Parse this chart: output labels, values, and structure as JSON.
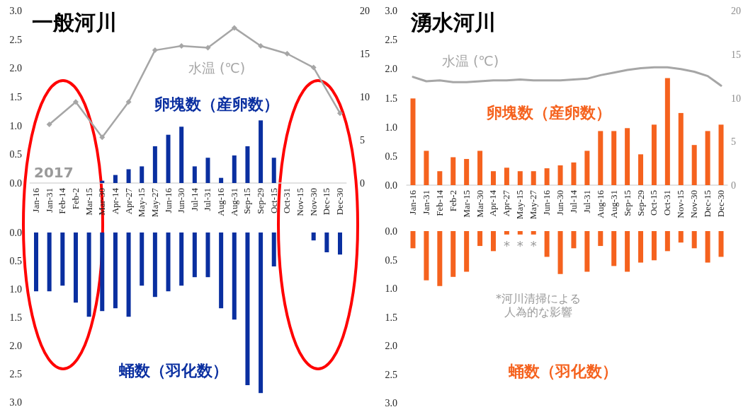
{
  "chart_data": [
    {
      "type": "bar",
      "title": "一般河川",
      "categories": [
        "Jan-16",
        "Jan-31",
        "Feb-14",
        "Feb-2",
        "Mar-15",
        "Mar-30",
        "Apr-14",
        "Apr-27",
        "May-15",
        "May-27",
        "Jun-16",
        "Jun-30",
        "Jul-14",
        "Jul-31",
        "Aug-16",
        "Aug-31",
        "Sep-15",
        "Sep-29",
        "Oct-15",
        "Oct-31",
        "Nov-15",
        "Nov-30",
        "Dec-15",
        "Dec-30"
      ],
      "series": [
        {
          "name": "卵塊数（産卵数）",
          "color": "#0a2fa0",
          "values": [
            0,
            0,
            0,
            0,
            0,
            0.04,
            0.14,
            0.24,
            0.29,
            0.64,
            0.84,
            0.98,
            0.29,
            0.44,
            0.09,
            0.48,
            0.64,
            1.09,
            0.44,
            0,
            0,
            0,
            0,
            0
          ]
        },
        {
          "name": "水温 (℃)",
          "type": "line",
          "axis": "y2",
          "color": "#a6a6a6",
          "marker": "diamond",
          "values": [
            null,
            6.8,
            null,
            9.4,
            null,
            5.3,
            null,
            9.4,
            null,
            15.4,
            null,
            15.9,
            null,
            15.7,
            null,
            18.0,
            null,
            15.9,
            null,
            15.0,
            null,
            13.4,
            null,
            8.1
          ]
        }
      ],
      "ylim": [
        0,
        3
      ],
      "yticks": [
        {
          "value": 0,
          "label": "0.0"
        },
        {
          "value": 0.5,
          "label": "0.5"
        },
        {
          "value": 1,
          "label": "1.0"
        },
        {
          "value": 1.5,
          "label": "1.5"
        },
        {
          "value": 2,
          "label": "2.0"
        },
        {
          "value": 2.5,
          "label": "2.5"
        },
        {
          "value": 3,
          "label": "3.0"
        }
      ],
      "y2lim": [
        0,
        20
      ],
      "y2ticks": [
        0,
        5,
        10,
        15,
        20
      ],
      "annotations": [
        "2017"
      ]
    },
    {
      "type": "bar",
      "categories": [
        "Jan-16",
        "Jan-31",
        "Feb-14",
        "Feb-2",
        "Mar-15",
        "Mar-30",
        "Apr-14",
        "Apr-27",
        "May-15",
        "May-27",
        "Jun-16",
        "Jun-30",
        "Jul-14",
        "Jul-31",
        "Aug-16",
        "Aug-31",
        "Sep-15",
        "Sep-29",
        "Oct-15",
        "Oct-31",
        "Nov-15",
        "Nov-30",
        "Dec-15",
        "Dec-30"
      ],
      "series": [
        {
          "name": "蛹数（羽化数）",
          "color": "#0a2fa0",
          "values": [
            1.04,
            1.04,
            0.94,
            1.24,
            1.49,
            1.39,
            1.34,
            1.49,
            0.94,
            1.14,
            1.04,
            0.94,
            0.79,
            0.79,
            1.34,
            1.54,
            2.7,
            2.84,
            0.6,
            0,
            0,
            0.14,
            0.35,
            0.39
          ]
        }
      ],
      "ylim": [
        3,
        0
      ],
      "yticks": [
        {
          "value": 0,
          "label": "0.0"
        },
        {
          "value": 0.5,
          "label": "0.5"
        },
        {
          "value": 1,
          "label": "1.0"
        },
        {
          "value": 1.5,
          "label": "1.5"
        },
        {
          "value": 2,
          "label": "2.0"
        },
        {
          "value": 2.5,
          "label": "2.5"
        },
        {
          "value": 3,
          "label": "3.0"
        }
      ],
      "tick_labels": "y"
    },
    {
      "type": "bar",
      "title": "湧水河川",
      "categories": [
        "Jan-16",
        "Jan-31",
        "Feb-14",
        "Feb-2",
        "Mar-15",
        "Mar-30",
        "Apr-14",
        "Apr-27",
        "May-15",
        "May-27",
        "Jun-16",
        "Jun-30",
        "Jul-14",
        "Jul-31",
        "Aug-16",
        "Aug-31",
        "Sep-15",
        "Sep-29",
        "Oct-15",
        "Oct-31",
        "Nov-15",
        "Nov-30",
        "Dec-15",
        "Dec-30"
      ],
      "series": [
        {
          "name": "卵塊数（産卵数）",
          "color": "#f5621e",
          "values": [
            1.49,
            0.59,
            0.24,
            0.48,
            0.45,
            0.59,
            0.24,
            0.3,
            0.24,
            0.24,
            0.29,
            0.34,
            0.39,
            0.59,
            0.93,
            0.93,
            0.98,
            0.53,
            1.04,
            1.84,
            1.24,
            0.69,
            0.93,
            1.04
          ]
        },
        {
          "name": "水温 (℃)",
          "type": "line",
          "axis": "y2",
          "color": "#a6a6a6",
          "values": [
            12.4,
            11.9,
            12.0,
            11.8,
            11.8,
            11.9,
            12.0,
            12.0,
            12.1,
            12.0,
            12.0,
            12.0,
            12.1,
            12.2,
            12.6,
            12.9,
            13.2,
            13.4,
            13.5,
            13.5,
            13.3,
            13.0,
            12.5,
            11.4
          ]
        }
      ],
      "ylim": [
        0,
        3
      ],
      "yticks": [
        {
          "value": 0,
          "label": "0.0"
        },
        {
          "value": 0.5,
          "label": "0.5"
        },
        {
          "value": 1,
          "label": "1.0"
        },
        {
          "value": 1.5,
          "label": "1.5"
        },
        {
          "value": 2,
          "label": "2.0"
        },
        {
          "value": 2.5,
          "label": "2.5"
        },
        {
          "value": 3,
          "label": "3.0"
        }
      ],
      "y2lim": [
        0,
        20
      ],
      "y2ticks": [
        0,
        5,
        10,
        15,
        20
      ]
    },
    {
      "type": "bar",
      "categories": [
        "Jan-16",
        "Jan-31",
        "Feb-14",
        "Feb-2",
        "Mar-15",
        "Mar-30",
        "Apr-14",
        "Apr-27",
        "May-15",
        "May-27",
        "Jun-16",
        "Jun-30",
        "Jul-14",
        "Jul-31",
        "Aug-16",
        "Aug-31",
        "Sep-15",
        "Sep-29",
        "Oct-15",
        "Oct-31",
        "Nov-15",
        "Nov-30",
        "Dec-15",
        "Dec-30"
      ],
      "series": [
        {
          "name": "蛹数（羽化数）",
          "color": "#f5621e",
          "values": [
            0.3,
            0.86,
            0.96,
            0.8,
            0.71,
            0.26,
            0.35,
            0.06,
            0.06,
            0.06,
            0.45,
            0.75,
            0.3,
            0.71,
            0.26,
            0.61,
            0.71,
            0.55,
            0.51,
            0.35,
            0.2,
            0.3,
            0.55,
            0.45
          ]
        }
      ],
      "ylim": [
        3,
        0
      ],
      "yticks": [
        {
          "value": 0,
          "label": "0.0"
        },
        {
          "value": 0.5,
          "label": "0.5"
        },
        {
          "value": 1,
          "label": "1.0"
        },
        {
          "value": 1.5,
          "label": "1.5"
        },
        {
          "value": 2,
          "label": "2.0"
        },
        {
          "value": 2.5,
          "label": "2.5"
        },
        {
          "value": 3,
          "label": "3.0"
        }
      ],
      "tick_labels": "y",
      "annotations": [
        {
          "text": "*",
          "x": "Apr-27",
          "y": 0.06
        },
        {
          "text": "*",
          "x": "May-15",
          "y": 0.06
        },
        {
          "text": "*",
          "x": "May-27",
          "y": 0.06
        },
        "*河川清掃による",
        "人為的な影響"
      ]
    }
  ]
}
